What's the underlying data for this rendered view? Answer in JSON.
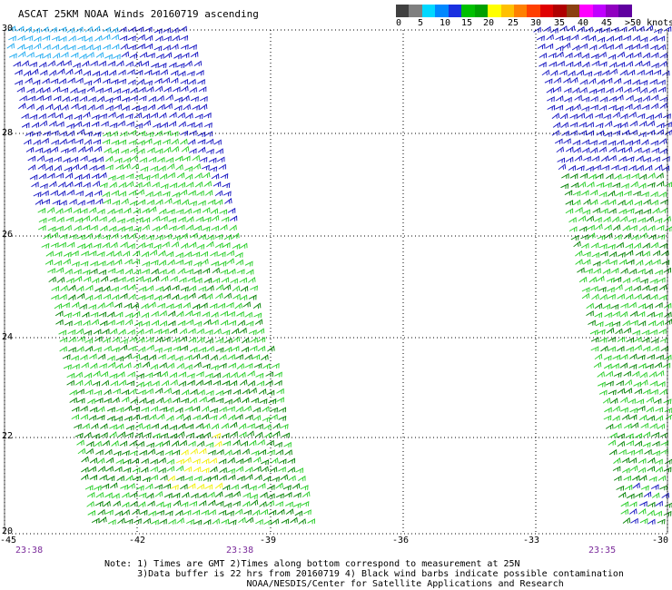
{
  "title": "ASCAT 25KM NOAA Winds 20160719 ascending",
  "legend": {
    "labels": [
      "0",
      "5",
      "10",
      "15",
      "20",
      "25",
      "30",
      "35",
      "40",
      "45",
      ">50 knots"
    ],
    "colors": [
      "#404040",
      "#7f7f7f",
      "#00d8ff",
      "#0088ff",
      "#1a30e0",
      "#00c000",
      "#00a000",
      "#ffff00",
      "#ffc000",
      "#ff8000",
      "#ff4000",
      "#e00000",
      "#b00000",
      "#8b4010",
      "#ff00ff",
      "#c000ff",
      "#9000c0",
      "#6000a0"
    ]
  },
  "axes": {
    "lat_labels": [
      "30",
      "28",
      "26",
      "24",
      "22",
      "20"
    ],
    "lon_labels": [
      "-45",
      "-42",
      "-39",
      "-36",
      "-33",
      "-30"
    ]
  },
  "times": [
    "23:38",
    "23:38",
    "23:35"
  ],
  "notes": [
    "Note: 1) Times are GMT 2)Times along bottom correspond to measurement at 25N",
    "      3)Data buffer is 22 hrs from 20160719 4) Black wind barbs indicate possible contamination",
    "                          NOAA/NESDIS/Center for Satellite Applications and Research"
  ],
  "wind_colors": {
    "light_blue": "#1eaaf0",
    "blue": "#1010c0",
    "green": "#22cc22",
    "dark_green": "#008000",
    "yellow": "#f0f000"
  }
}
